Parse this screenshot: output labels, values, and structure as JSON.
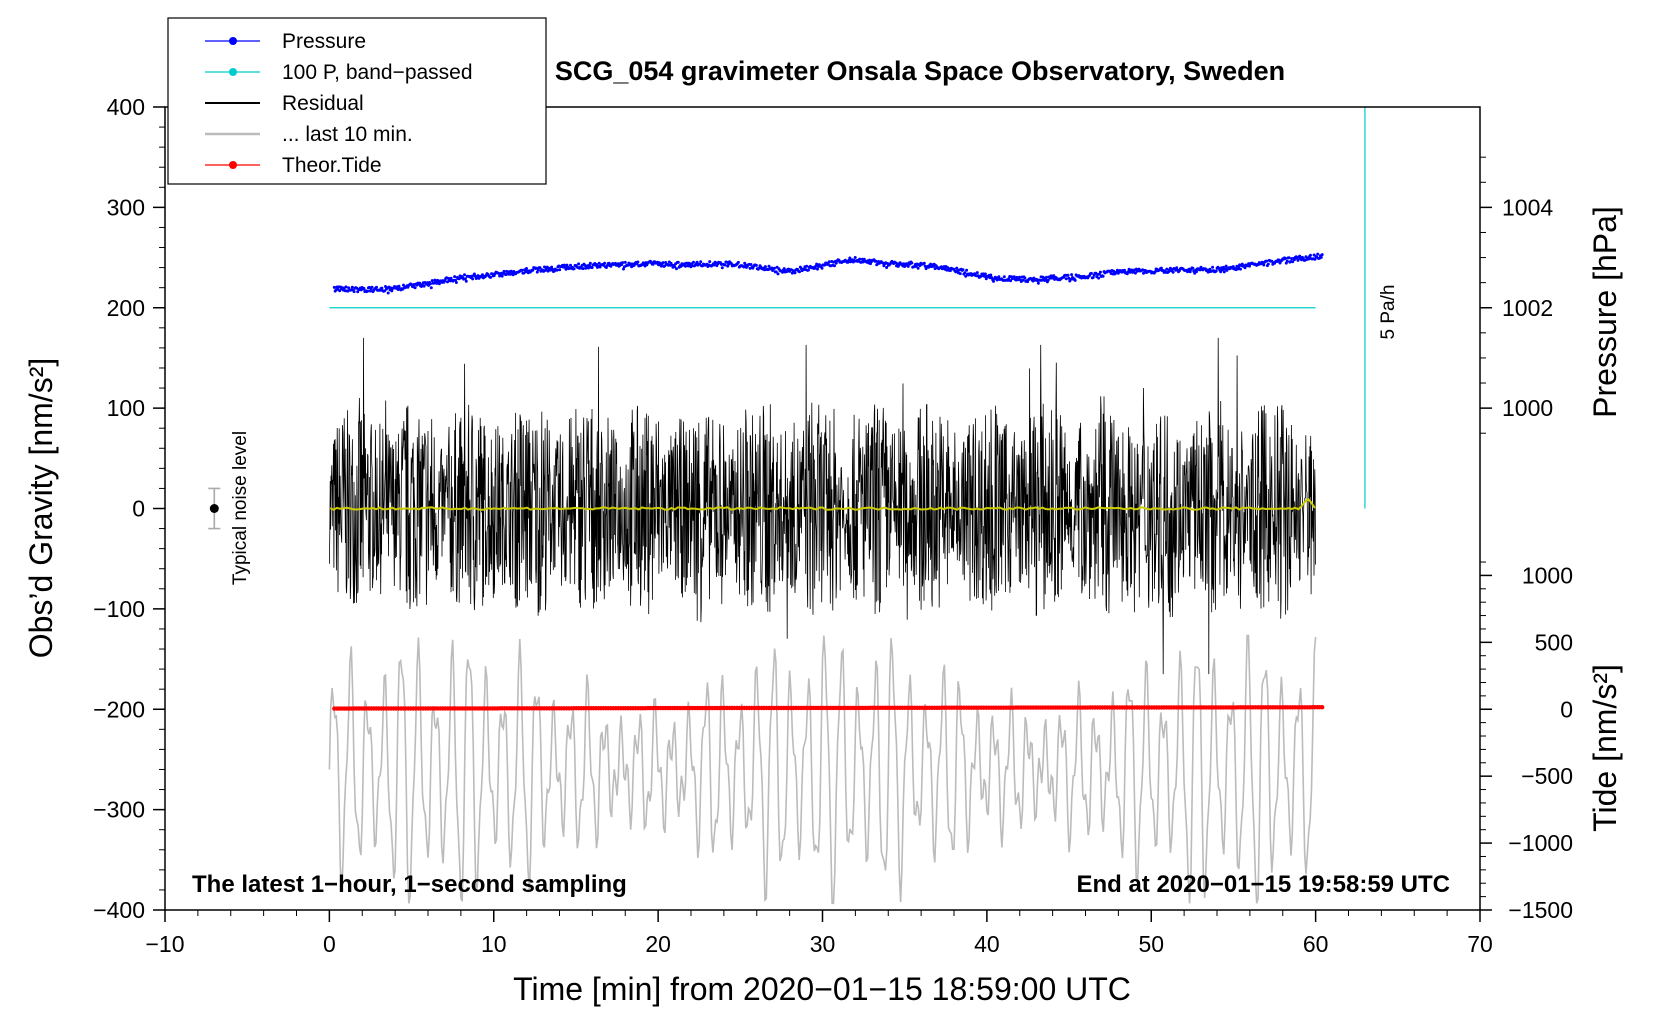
{
  "chart_data": {
    "type": "line",
    "title": "SCG_054 gravimeter Onsala Space Observatory, Sweden",
    "xlabel": "Time [min] from 2020−01−15 18:59:00 UTC",
    "ylabel_left": "Obs’d Gravity [nm/s²]",
    "ylabel_right_pressure": "Pressure [hPa]",
    "ylabel_right_tide": "Tide [nm/s²]",
    "xlim": [
      -10,
      70
    ],
    "ylim_left": [
      -400,
      400
    ],
    "pressure_axis": {
      "ticks": [
        1000,
        1002,
        1004
      ],
      "tick_labels": [
        "1000",
        "1002",
        "1004"
      ],
      "gravity_at_1000": 100,
      "gravity_per_hPa": 50
    },
    "tide_axis": {
      "ticks": [
        -1500,
        -1000,
        -500,
        0,
        500,
        1000
      ],
      "tick_labels": [
        "−1500",
        "−1000",
        "−500",
        "0",
        "500",
        "1000"
      ],
      "gravity_at_zero": -200,
      "gravity_per_unit": 0.13333
    },
    "x_ticks": [
      -10,
      0,
      10,
      20,
      30,
      40,
      50,
      60,
      70
    ],
    "x_tick_labels": [
      "−10",
      "0",
      "10",
      "20",
      "30",
      "40",
      "50",
      "60",
      "70"
    ],
    "y_ticks": [
      -400,
      -300,
      -200,
      -100,
      0,
      100,
      200,
      300,
      400
    ],
    "y_tick_labels": [
      "−400",
      "−300",
      "−200",
      "−100",
      "0",
      "100",
      "200",
      "300",
      "400"
    ],
    "legend": {
      "placement": "top-left",
      "entries": [
        {
          "label": "Pressure",
          "color": "#0000ff",
          "marker": "dot"
        },
        {
          "label": "100 P, band−passed",
          "color": "#00cccc",
          "marker": "dot"
        },
        {
          "label": "Residual",
          "color": "#000000",
          "marker": "line"
        },
        {
          "label": "... last 10 min.",
          "color": "#bbbbbb",
          "marker": "line"
        },
        {
          "label": "Theor.Tide",
          "color": "#ff0000",
          "marker": "dot"
        }
      ]
    },
    "series": [
      {
        "name": "Pressure",
        "unit": "hPa",
        "color": "#0000ff",
        "x": [
          0,
          2,
          4,
          6,
          8,
          10,
          12,
          14,
          16,
          18,
          20,
          22,
          24,
          26,
          28,
          30,
          32,
          34,
          36,
          38,
          40,
          42,
          44,
          46,
          48,
          50,
          52,
          54,
          56,
          58,
          60
        ],
        "values": [
          1002.38,
          1002.36,
          1002.38,
          1002.48,
          1002.6,
          1002.66,
          1002.74,
          1002.8,
          1002.84,
          1002.86,
          1002.88,
          1002.86,
          1002.88,
          1002.82,
          1002.72,
          1002.86,
          1002.96,
          1002.88,
          1002.86,
          1002.76,
          1002.62,
          1002.56,
          1002.6,
          1002.62,
          1002.72,
          1002.74,
          1002.76,
          1002.76,
          1002.84,
          1002.94,
          1003.02
        ]
      },
      {
        "name": "100 P, band−passed",
        "color": "#00cccc",
        "x": [
          0,
          60
        ],
        "gravity_values": [
          200,
          200
        ]
      },
      {
        "name": "Residual",
        "color": "#000000",
        "x_range": [
          0,
          60
        ],
        "envelope_nm_s2": [
          -165,
          170
        ],
        "note": "1-second sampled residual, dense noise around 0"
      },
      {
        "name": "Residual smoothed",
        "color": "#cccc00",
        "x": [
          0,
          30,
          59,
          59.5,
          60
        ],
        "gravity_values": [
          0,
          0,
          0,
          10,
          0
        ]
      },
      {
        "name": "... last 10 min.",
        "color": "#bbbbbb",
        "unit": "nm/s² (tide axis)",
        "x_range": [
          0,
          60
        ],
        "min": -1450,
        "max": 550
      },
      {
        "name": "Theor.Tide",
        "unit": "nm/s²",
        "color": "#ff0000",
        "x": [
          0,
          60
        ],
        "values": [
          5,
          15
        ]
      }
    ],
    "annotations": {
      "noise_label": "Typical noise level",
      "noise_bar": {
        "x": -7,
        "center": 0,
        "half_range": 20
      },
      "rate_label": "5 Pa/h",
      "rate_bar": {
        "x": 63,
        "from": 0,
        "to": 400
      },
      "bottom_left": "The latest 1−hour, 1−second sampling",
      "bottom_right": "End at 2020−01−15 19:58:59 UTC"
    }
  }
}
